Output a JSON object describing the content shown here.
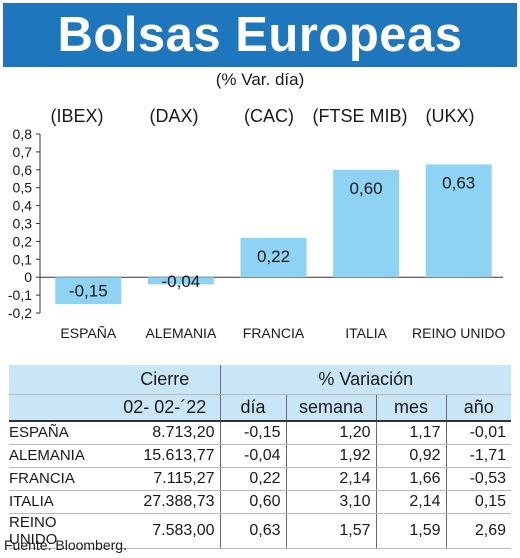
{
  "header": {
    "title": "Bolsas Europeas",
    "subtitle": "(% Var. día)"
  },
  "indices": [
    "(IBEX)",
    "(DAX)",
    "(CAC)",
    "(FTSE MIB)",
    "(UKX)"
  ],
  "colors": {
    "banner": "#1e77bd",
    "bar": "#8ed3f3",
    "table_header": "#c9e6f7"
  },
  "chart_data": {
    "type": "bar",
    "categories": [
      "ESPAÑA",
      "ALEMANIA",
      "FRANCIA",
      "ITALIA",
      "REINO UNIDO"
    ],
    "values": [
      -0.15,
      -0.04,
      0.22,
      0.6,
      0.63
    ],
    "value_labels": [
      "-0,15",
      "-0,04",
      "0,22",
      "0,60",
      "0,63"
    ],
    "ylim": [
      -0.2,
      0.8
    ],
    "yticks": [
      "0,8",
      "0,7",
      "0,6",
      "0,5",
      "0,4",
      "0,3",
      "0,2",
      "0,1",
      "0",
      "-0,1",
      "-0,2"
    ],
    "grid": false,
    "title": "",
    "xlabel": "",
    "ylabel": ""
  },
  "table": {
    "group_headers": {
      "cierre": "Cierre",
      "variacion": "% Variación"
    },
    "columns": {
      "date": "02- 02-´22",
      "dia": "día",
      "semana": "semana",
      "mes": "mes",
      "ano": "año"
    },
    "rows": [
      {
        "country": "ESPAÑA",
        "cierre": "8.713,20",
        "dia": "-0,15",
        "semana": "1,20",
        "mes": "1,17",
        "ano": "-0,01"
      },
      {
        "country": "ALEMANIA",
        "cierre": "15.613,77",
        "dia": "-0,04",
        "semana": "1,92",
        "mes": "0,92",
        "ano": "-1,71"
      },
      {
        "country": "FRANCIA",
        "cierre": "7.115,27",
        "dia": "0,22",
        "semana": "2,14",
        "mes": "1,66",
        "ano": "-0,53"
      },
      {
        "country": "ITALIA",
        "cierre": "27.388,73",
        "dia": "0,60",
        "semana": "3,10",
        "mes": "2,14",
        "ano": "0,15"
      },
      {
        "country": "REINO UNIDO",
        "cierre": "7.583,00",
        "dia": "0,63",
        "semana": "1,57",
        "mes": "1,59",
        "ano": "2,69"
      }
    ]
  },
  "source": "Fuente: Bloomberg."
}
